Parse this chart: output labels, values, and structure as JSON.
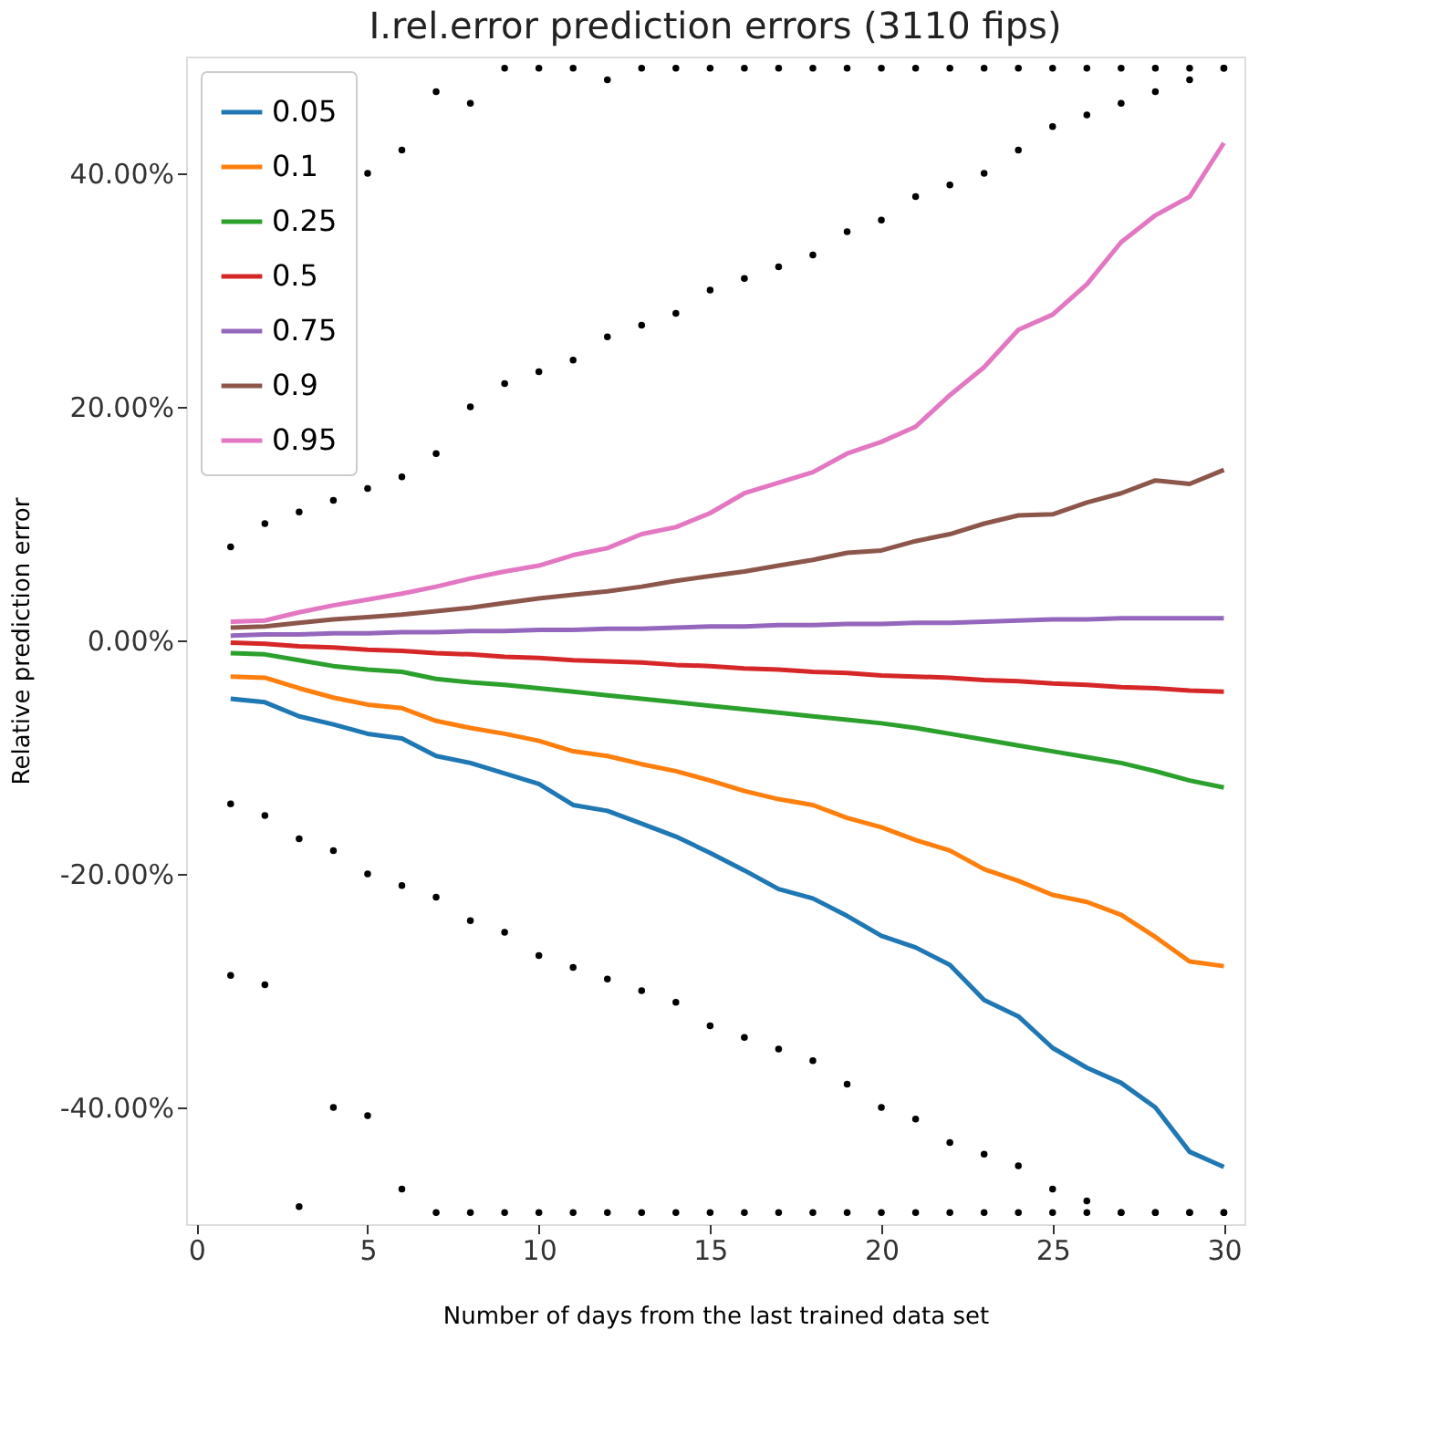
{
  "chart_data": {
    "type": "line",
    "title": "I.rel.error prediction errors (3110 fips)",
    "xlabel": "Number of days from the last trained data set",
    "ylabel": "Relative prediction error",
    "x": [
      1,
      2,
      3,
      4,
      5,
      6,
      7,
      8,
      9,
      10,
      11,
      12,
      13,
      14,
      15,
      16,
      17,
      18,
      19,
      20,
      21,
      22,
      23,
      24,
      25,
      26,
      27,
      28,
      29,
      30
    ],
    "xlim": [
      -0.3,
      30.6
    ],
    "xticks": [
      0,
      5,
      10,
      15,
      20,
      25,
      30
    ],
    "ylim": [
      -50,
      50
    ],
    "yticks": [
      {
        "value": -40,
        "label": "-40.00%"
      },
      {
        "value": -20,
        "label": "-20.00%"
      },
      {
        "value": 0,
        "label": "0.00%"
      },
      {
        "value": 20,
        "label": "20.00%"
      },
      {
        "value": 40,
        "label": "40.00%"
      }
    ],
    "grid": false,
    "legend": "top left",
    "marker": "none",
    "line_style": "solid",
    "series": [
      {
        "type": "scatter",
        "marker": "circle",
        "color": "#000000",
        "x": [
          1,
          1,
          1,
          2,
          2,
          2,
          3,
          3,
          3,
          4,
          4,
          4,
          5,
          5,
          5,
          5,
          6,
          6,
          6,
          6,
          7,
          7,
          7,
          7,
          8,
          8,
          8,
          8,
          9,
          9,
          9,
          9,
          10,
          10,
          10,
          10,
          11,
          11,
          11,
          11,
          12,
          12,
          12,
          12,
          13,
          13,
          13,
          13,
          14,
          14,
          14,
          14,
          15,
          15,
          15,
          15,
          16,
          16,
          16,
          16,
          17,
          17,
          17,
          17,
          18,
          18,
          18,
          18,
          19,
          19,
          19,
          19,
          20,
          20,
          20,
          20,
          21,
          21,
          21,
          21,
          22,
          22,
          22,
          22,
          23,
          23,
          23,
          23,
          24,
          24,
          24,
          24,
          25,
          25,
          25,
          25,
          26,
          26,
          26,
          26,
          27,
          27,
          27,
          27,
          28,
          28,
          28,
          28,
          29,
          29,
          29,
          29,
          30,
          30,
          30,
          30
        ],
        "values": [
          8,
          -14,
          -28.7,
          10,
          -15,
          -29.5,
          11,
          -17,
          -48.5,
          12,
          -18,
          -40,
          40,
          13,
          -20,
          -40.7,
          42,
          14,
          -21,
          -47,
          47,
          16,
          -22,
          -49,
          46,
          20,
          -24,
          -49,
          49,
          22,
          -25,
          -49,
          49,
          23,
          -27,
          -49,
          49,
          24,
          -28,
          -49,
          48,
          26,
          -29,
          -49,
          49,
          27,
          -30,
          -49,
          49,
          28,
          -31,
          -49,
          49,
          30,
          -33,
          -49,
          49,
          31,
          -34,
          -49,
          49,
          32,
          -35,
          -49,
          49,
          33,
          -36,
          -49,
          49,
          35,
          -38,
          -49,
          49,
          36,
          -40,
          -49,
          49,
          38,
          -41,
          -49,
          49,
          39,
          -43,
          -49,
          49,
          40,
          -44,
          -49,
          49,
          42,
          -45,
          -49,
          49,
          44,
          -47,
          -49,
          49,
          45,
          -48,
          -49,
          49,
          46,
          -49,
          -49,
          49,
          47,
          -49,
          -49,
          49,
          48,
          -49,
          -49,
          49,
          49,
          -49,
          -49
        ]
      },
      {
        "name": "0.05",
        "color": "#1f77b4",
        "values": [
          -5.0,
          -5.3,
          -6.5,
          -7.2,
          -8.0,
          -8.4,
          -9.9,
          -10.5,
          -11.4,
          -12.3,
          -14.1,
          -14.6,
          -15.7,
          -16.8,
          -18.2,
          -19.7,
          -21.3,
          -22.1,
          -23.6,
          -25.3,
          -26.3,
          -27.8,
          -30.8,
          -32.2,
          -34.9,
          -36.6,
          -37.9,
          -40.0,
          -43.8,
          -45.1
        ]
      },
      {
        "name": "0.1",
        "color": "#ff7f0e",
        "values": [
          -3.1,
          -3.2,
          -4.1,
          -4.9,
          -5.5,
          -5.8,
          -6.9,
          -7.5,
          -8.0,
          -8.6,
          -9.5,
          -9.9,
          -10.6,
          -11.2,
          -12.0,
          -12.9,
          -13.6,
          -14.1,
          -15.2,
          -16.0,
          -17.1,
          -18.0,
          -19.6,
          -20.6,
          -21.8,
          -22.4,
          -23.5,
          -25.4,
          -27.5,
          -27.9
        ]
      },
      {
        "name": "0.25",
        "color": "#2ca02c",
        "values": [
          -1.1,
          -1.2,
          -1.7,
          -2.2,
          -2.5,
          -2.7,
          -3.3,
          -3.6,
          -3.8,
          -4.1,
          -4.4,
          -4.7,
          -5.0,
          -5.3,
          -5.6,
          -5.9,
          -6.2,
          -6.5,
          -6.8,
          -7.1,
          -7.5,
          -8.0,
          -8.5,
          -9.0,
          -9.5,
          -10.0,
          -10.5,
          -11.2,
          -12.0,
          -12.6
        ]
      },
      {
        "name": "0.5",
        "color": "#d62728",
        "values": [
          -0.2,
          -0.3,
          -0.5,
          -0.6,
          -0.8,
          -0.9,
          -1.1,
          -1.2,
          -1.4,
          -1.5,
          -1.7,
          -1.8,
          -1.9,
          -2.1,
          -2.2,
          -2.4,
          -2.5,
          -2.7,
          -2.8,
          -3.0,
          -3.1,
          -3.2,
          -3.4,
          -3.5,
          -3.7,
          -3.8,
          -4.0,
          -4.1,
          -4.3,
          -4.4
        ]
      },
      {
        "name": "0.75",
        "color": "#9467bd",
        "values": [
          0.4,
          0.5,
          0.5,
          0.6,
          0.6,
          0.7,
          0.7,
          0.8,
          0.8,
          0.9,
          0.9,
          1.0,
          1.0,
          1.1,
          1.2,
          1.2,
          1.3,
          1.3,
          1.4,
          1.4,
          1.5,
          1.5,
          1.6,
          1.7,
          1.8,
          1.8,
          1.9,
          1.9,
          1.9,
          1.9
        ]
      },
      {
        "name": "0.9",
        "color": "#8c564b",
        "values": [
          1.1,
          1.2,
          1.5,
          1.8,
          2.0,
          2.2,
          2.5,
          2.8,
          3.2,
          3.6,
          3.9,
          4.2,
          4.6,
          5.1,
          5.5,
          5.9,
          6.4,
          6.9,
          7.5,
          7.7,
          8.5,
          9.1,
          10.0,
          10.7,
          10.8,
          11.8,
          12.6,
          13.7,
          13.4,
          14.6
        ]
      },
      {
        "name": "0.95",
        "color": "#e377c2",
        "values": [
          1.6,
          1.7,
          2.4,
          3.0,
          3.5,
          4.0,
          4.6,
          5.3,
          5.9,
          6.4,
          7.3,
          7.9,
          9.1,
          9.7,
          10.9,
          12.6,
          13.5,
          14.4,
          16.0,
          17.0,
          18.3,
          21.0,
          23.4,
          26.6,
          27.9,
          30.5,
          34.1,
          36.4,
          38.0,
          42.6
        ]
      }
    ]
  }
}
